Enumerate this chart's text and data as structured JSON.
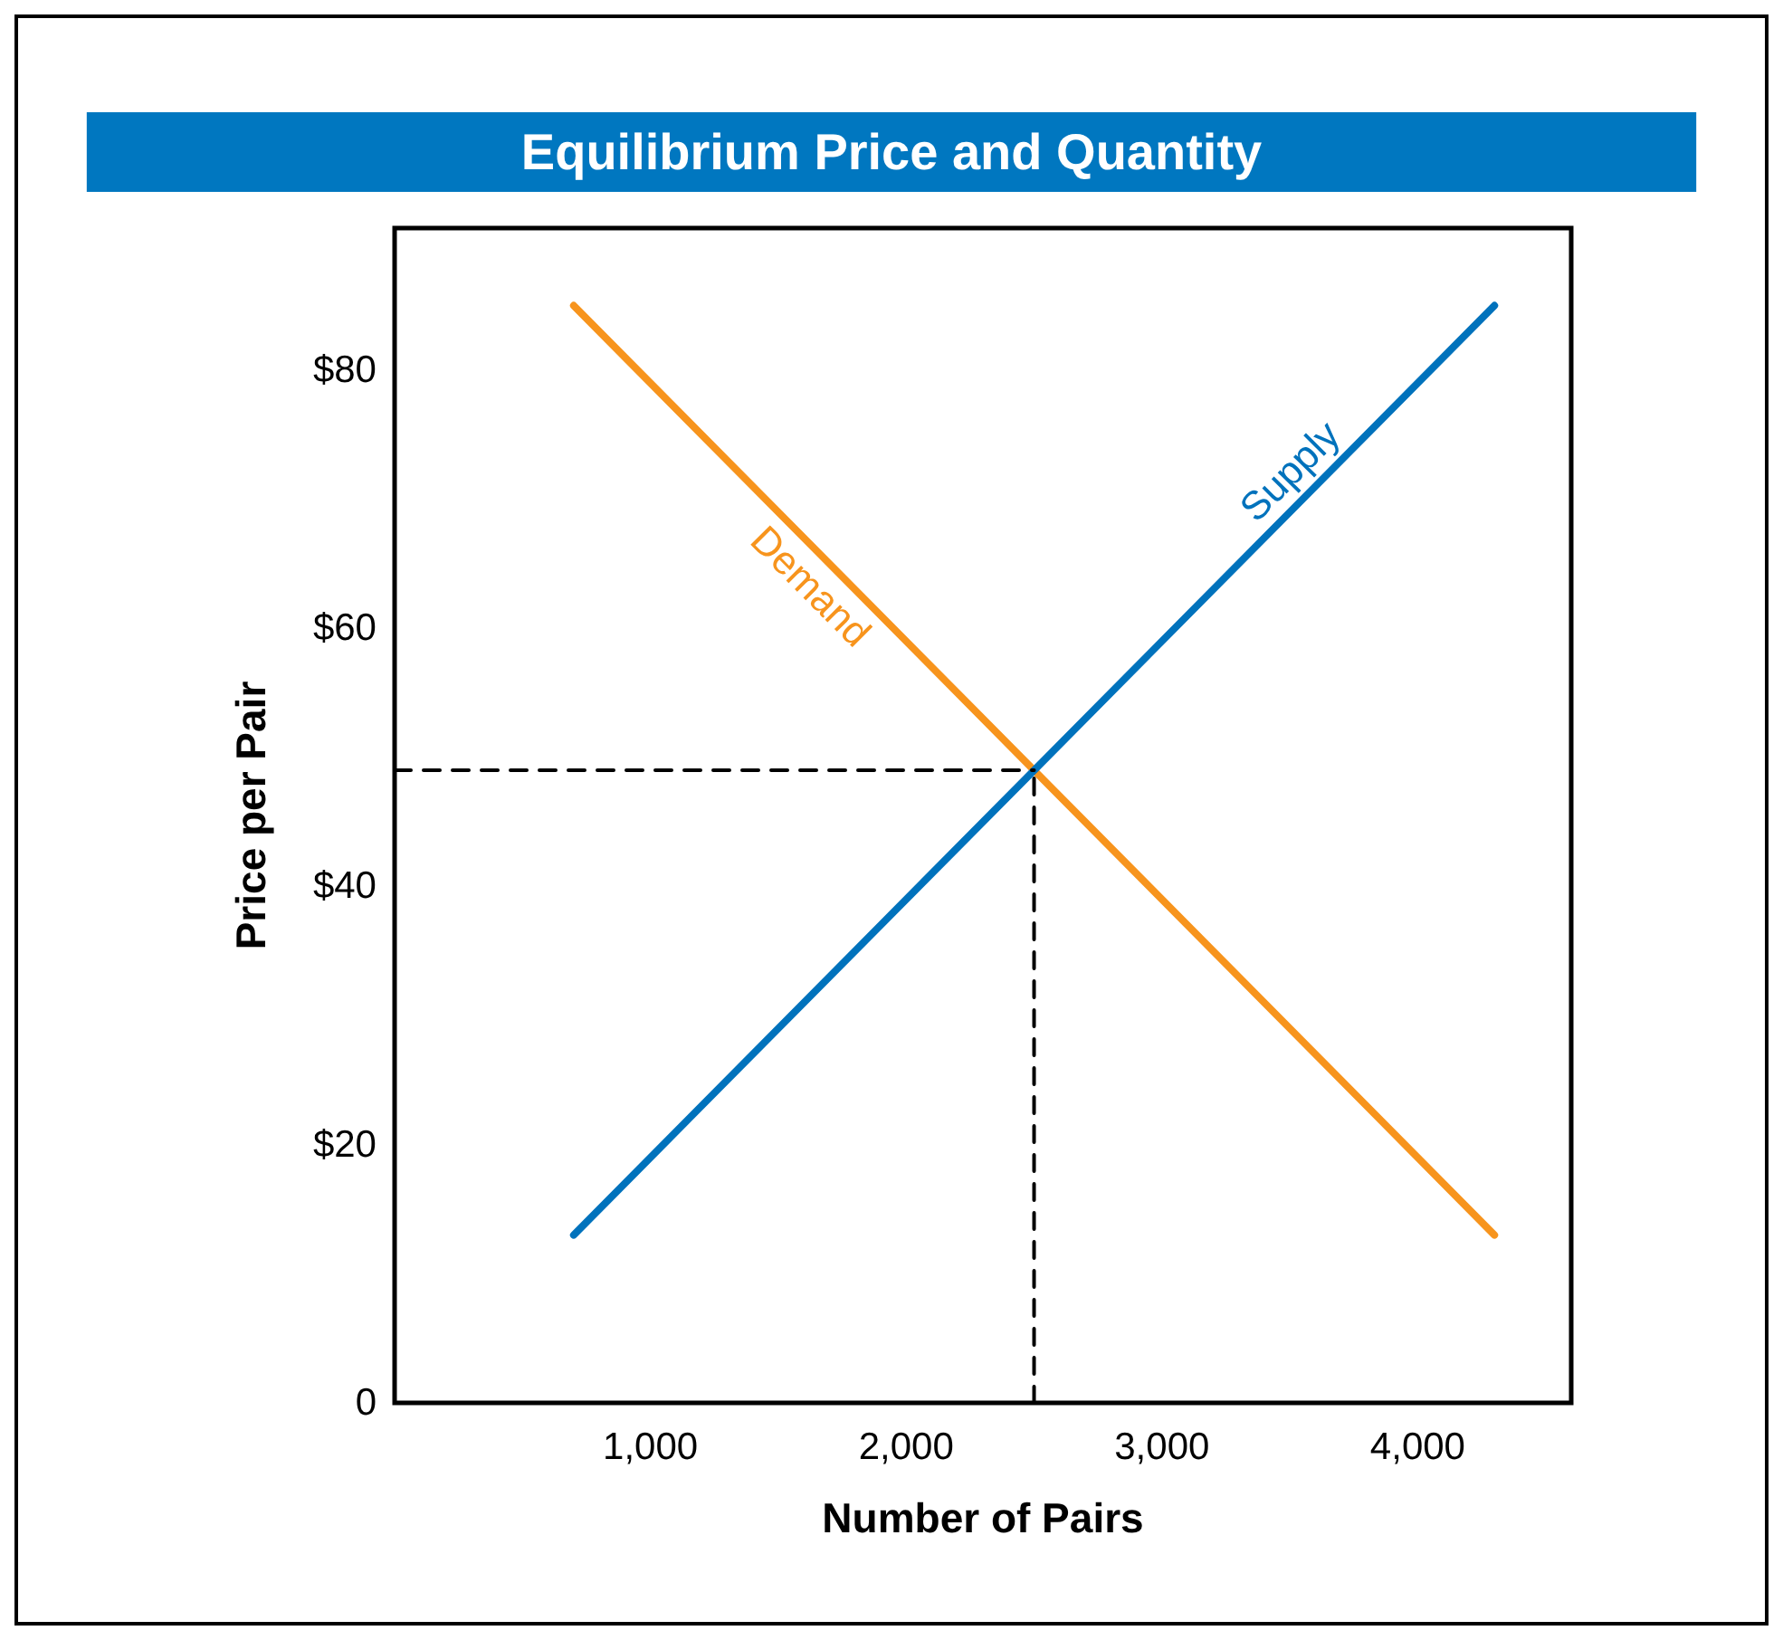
{
  "chart_data": {
    "type": "line",
    "title": "Equilibrium Price and Quantity",
    "xlabel": "Number of Pairs",
    "ylabel": "Price per Pair",
    "series": [
      {
        "name": "Demand",
        "color": "#f7941d",
        "x": [
          700,
          2500,
          4300
        ],
        "values": [
          85,
          49,
          13
        ]
      },
      {
        "name": "Supply",
        "color": "#0072bc",
        "x": [
          700,
          2500,
          4300
        ],
        "values": [
          13,
          49,
          85
        ]
      },
      {
        "color": "#000000",
        "x": [
          0,
          2500
        ],
        "values": [
          49,
          49
        ],
        "line_style": "dashed"
      },
      {
        "color": "#000000",
        "x": [
          2500,
          2500
        ],
        "values": [
          0,
          49
        ],
        "line_style": "dashed"
      }
    ],
    "xlim": [
      0,
      4600
    ],
    "ylim": [
      0,
      91
    ],
    "xticks": [
      {
        "value": 1000,
        "label": "1,000"
      },
      {
        "value": 2000,
        "label": "2,000"
      },
      {
        "value": 3000,
        "label": "3,000"
      },
      {
        "value": 4000,
        "label": "4,000"
      }
    ],
    "yticks": [
      0,
      {
        "value": 20,
        "label": "$20"
      },
      {
        "value": 40,
        "label": "$40"
      },
      {
        "value": 60,
        "label": "$60"
      },
      {
        "value": 80,
        "label": "$80"
      }
    ],
    "marker": "none",
    "line_style": "solid",
    "legend": false,
    "grid": false
  }
}
